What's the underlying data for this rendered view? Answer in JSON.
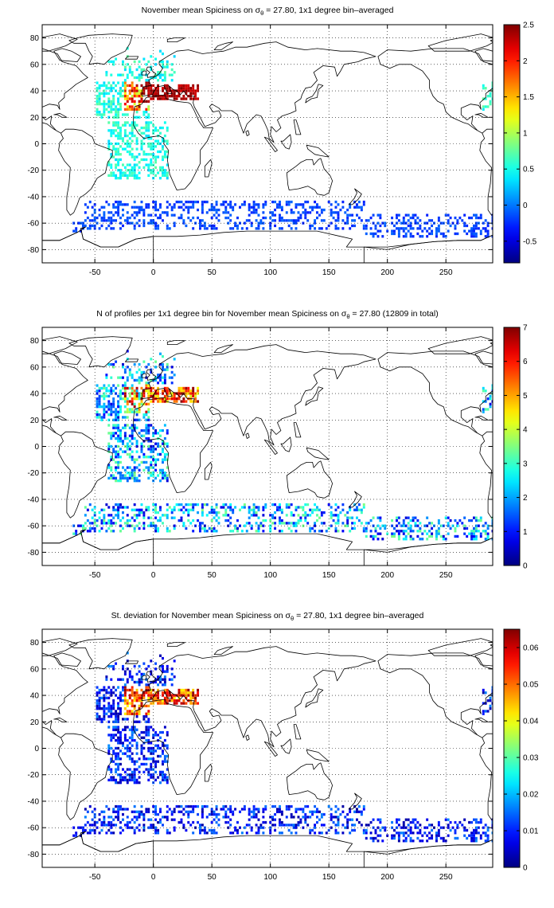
{
  "figure": {
    "panels": [
      {
        "id": "mean",
        "title_pre": "November mean Spiciness on ",
        "sigma": "σ",
        "sigma_sub": "θ",
        "title_post": " = 27.80, 1x1 degree bin–averaged",
        "colorbar": {
          "min": -0.8,
          "max": 2.5,
          "ticks": [
            -0.5,
            0,
            0.5,
            1,
            1.5,
            2,
            2.5
          ],
          "tick_labels": [
            "-0.5",
            "0",
            "0.5",
            "1",
            "1.5",
            "2",
            "2.5"
          ]
        }
      },
      {
        "id": "count",
        "title_pre": "N of profiles per 1x1 degree bin for November mean Spiciness on ",
        "sigma": "σ",
        "sigma_sub": "θ",
        "title_post": " = 27.80 (12809 in total)",
        "colorbar": {
          "min": 0,
          "max": 7,
          "ticks": [
            0,
            1,
            2,
            3,
            4,
            5,
            6,
            7
          ],
          "tick_labels": [
            "0",
            "1",
            "2",
            "3",
            "4",
            "5",
            "6",
            "7"
          ]
        }
      },
      {
        "id": "std",
        "title_pre": "St. deviation for November mean Spiciness on ",
        "sigma": "σ",
        "sigma_sub": "θ",
        "title_post": " = 27.80, 1x1 degree bin–averaged",
        "colorbar": {
          "min": 0,
          "max": 0.065,
          "ticks": [
            0,
            0.01,
            0.02,
            0.03,
            0.04,
            0.05,
            0.06
          ],
          "tick_labels": [
            "0",
            "0.01",
            "0.02",
            "0.03",
            "0.04",
            "0.05",
            "0.06"
          ]
        }
      }
    ],
    "x_axis": {
      "range": [
        -95,
        290
      ],
      "ticks": [
        -50,
        0,
        50,
        100,
        150,
        200,
        250
      ],
      "tick_labels": [
        "-50",
        "0",
        "50",
        "100",
        "150",
        "200",
        "250"
      ]
    },
    "y_axis": {
      "range": [
        -90,
        90
      ],
      "ticks": [
        -80,
        -60,
        -40,
        -20,
        0,
        20,
        40,
        60,
        80
      ],
      "tick_labels": [
        "-80",
        "-60",
        "-40",
        "-20",
        "0",
        "20",
        "40",
        "60",
        "80"
      ]
    },
    "grid": "dotted",
    "colormap": "jet"
  }
}
